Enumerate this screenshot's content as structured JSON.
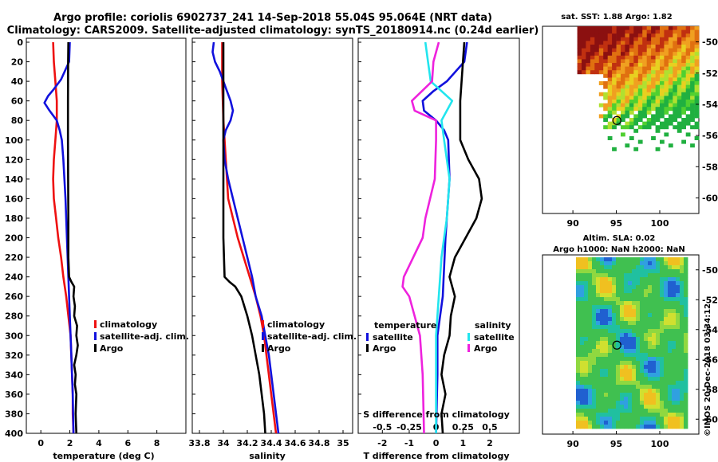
{
  "title": {
    "line1": "Argo profile: coriolis 6902737_241 14-Sep-2018 55.04S 95.064E (NRT data)",
    "line2": "Climatology: CARS2009. Satellite-adjusted climatology: synTS_20180914.nc (0.24d earlier)"
  },
  "colors": {
    "climatology": "#ee1111",
    "satellite": "#1111dd",
    "argo": "#000000",
    "sat_salinity": "#22e5ee",
    "argo_salinity": "#ee22dd"
  },
  "depth_ticks": [
    "0",
    "20",
    "40",
    "60",
    "80",
    "100",
    "120",
    "140",
    "160",
    "180",
    "200",
    "220",
    "240",
    "260",
    "280",
    "300",
    "320",
    "340",
    "360",
    "380",
    "400"
  ],
  "chart_data": [
    {
      "type": "line",
      "id": "temperature",
      "xlabel": "temperature (deg C)",
      "xlim": [
        -1,
        10
      ],
      "ylim": [
        0,
        400
      ],
      "x_ticks": [
        "0",
        "2",
        "4",
        "6",
        "8"
      ],
      "legend": [
        "climatology",
        "satellite-adj. clim.",
        "Argo"
      ],
      "series": [
        {
          "name": "climatology",
          "color": "#ee1111",
          "depth": [
            0,
            20,
            40,
            60,
            80,
            100,
            120,
            140,
            160,
            180,
            200,
            220,
            240,
            260,
            280,
            300,
            320,
            340,
            360,
            380,
            400
          ],
          "values": [
            0.85,
            0.9,
            1.0,
            1.1,
            1.1,
            1.0,
            0.9,
            0.85,
            0.9,
            1.05,
            1.2,
            1.4,
            1.55,
            1.75,
            1.9,
            2.05,
            2.1,
            2.15,
            2.2,
            2.2,
            2.25
          ]
        },
        {
          "name": "satellite-adj. clim.",
          "color": "#1111dd",
          "depth": [
            0,
            20,
            38,
            48,
            55,
            62,
            70,
            80,
            90,
            100,
            120,
            160,
            200,
            240,
            280,
            320,
            360,
            400
          ],
          "values": [
            2.0,
            1.95,
            1.4,
            0.9,
            0.5,
            0.25,
            0.6,
            1.1,
            1.3,
            1.45,
            1.55,
            1.7,
            1.8,
            1.9,
            2.0,
            2.1,
            2.2,
            2.25
          ]
        },
        {
          "name": "Argo",
          "color": "#000000",
          "depth": [
            0,
            20,
            60,
            100,
            140,
            180,
            200,
            220,
            240,
            245,
            250,
            260,
            270,
            280,
            290,
            300,
            310,
            320,
            330,
            340,
            350,
            360,
            380,
            400
          ],
          "values": [
            1.9,
            1.88,
            1.87,
            1.87,
            1.88,
            1.9,
            1.9,
            1.9,
            1.95,
            2.1,
            2.3,
            2.25,
            2.35,
            2.3,
            2.5,
            2.45,
            2.55,
            2.45,
            2.3,
            2.4,
            2.35,
            2.45,
            2.4,
            2.45
          ]
        }
      ]
    },
    {
      "type": "line",
      "id": "salinity",
      "xlabel": "salinity",
      "xlim": [
        33.74,
        35.08
      ],
      "ylim": [
        0,
        400
      ],
      "x_ticks": [
        "33.8",
        "34",
        "34.2",
        "34.4",
        "34.6",
        "34.8",
        "35"
      ],
      "legend": [
        "climatology",
        "satellite-adj. clim.",
        "Argo"
      ],
      "series": [
        {
          "name": "climatology",
          "color": "#ee1111",
          "depth": [
            0,
            40,
            80,
            120,
            160,
            180,
            200,
            220,
            240,
            260,
            280,
            300,
            320,
            340,
            360,
            380,
            400
          ],
          "values": [
            33.99,
            33.99,
            34.0,
            34.02,
            34.04,
            34.08,
            34.12,
            34.17,
            34.22,
            34.27,
            34.31,
            34.34,
            34.36,
            34.38,
            34.4,
            34.42,
            34.44
          ]
        },
        {
          "name": "satellite-adj. clim.",
          "color": "#1111dd",
          "depth": [
            0,
            10,
            20,
            30,
            40,
            50,
            60,
            70,
            80,
            90,
            100,
            120,
            140,
            160,
            180,
            200,
            220,
            240,
            260,
            280,
            300,
            320,
            340,
            360,
            380,
            400
          ],
          "values": [
            33.92,
            33.91,
            33.93,
            33.97,
            34.0,
            34.03,
            34.06,
            34.08,
            34.06,
            34.02,
            34.0,
            34.01,
            34.04,
            34.08,
            34.12,
            34.16,
            34.2,
            34.24,
            34.27,
            34.32,
            34.35,
            34.38,
            34.4,
            34.42,
            34.44,
            34.46
          ]
        },
        {
          "name": "Argo",
          "color": "#000000",
          "depth": [
            0,
            40,
            80,
            120,
            160,
            200,
            240,
            245,
            250,
            260,
            280,
            300,
            320,
            340,
            360,
            380,
            400
          ],
          "values": [
            34.0,
            34.0,
            34.0,
            34.0,
            34.0,
            34.0,
            34.01,
            34.05,
            34.1,
            34.15,
            34.2,
            34.24,
            34.27,
            34.3,
            34.32,
            34.34,
            34.35
          ]
        }
      ]
    },
    {
      "type": "line",
      "id": "difference",
      "xlabel": "T difference from climatology",
      "top_axis_label": "S difference from climatology",
      "xlim": [
        -2.9,
        3.1
      ],
      "ylim": [
        0,
        400
      ],
      "x_ticks": [
        "-2",
        "-1",
        "0",
        "1",
        "2"
      ],
      "top_ticks": [
        "-0.5",
        "-0.25",
        "0",
        "0.25",
        "0.5"
      ],
      "legend_groups": [
        {
          "title": "temperature",
          "items": [
            "satellite",
            "Argo"
          ]
        },
        {
          "title": "salinity",
          "items": [
            "satellite",
            "Argo"
          ]
        }
      ],
      "series": [
        {
          "name": "temperature satellite",
          "color": "#1111dd",
          "depth": [
            0,
            20,
            40,
            50,
            60,
            70,
            80,
            90,
            100,
            140,
            200,
            260,
            300,
            340,
            400
          ],
          "values": [
            1.15,
            1.05,
            0.4,
            -0.1,
            -0.5,
            -0.45,
            0.0,
            0.3,
            0.45,
            0.5,
            0.35,
            0.25,
            0.05,
            0.05,
            0.0
          ]
        },
        {
          "name": "temperature Argo",
          "color": "#000000",
          "depth": [
            0,
            20,
            60,
            100,
            120,
            140,
            160,
            180,
            200,
            220,
            240,
            260,
            280,
            300,
            320,
            340,
            360,
            380,
            400
          ],
          "values": [
            1.05,
            1.0,
            0.9,
            0.9,
            1.2,
            1.6,
            1.7,
            1.5,
            1.1,
            0.7,
            0.5,
            0.7,
            0.55,
            0.5,
            0.3,
            0.2,
            0.35,
            0.2,
            0.25
          ]
        },
        {
          "name": "salinity satellite",
          "color": "#22e5ee",
          "depth": [
            0,
            20,
            40,
            60,
            80,
            100,
            120,
            140,
            160,
            180,
            200,
            220,
            240,
            260,
            280,
            300,
            320,
            340,
            360,
            380,
            400
          ],
          "values": [
            -0.4,
            -0.3,
            -0.2,
            0.6,
            0.2,
            0.3,
            0.4,
            0.5,
            0.45,
            0.4,
            0.3,
            0.2,
            0.15,
            0.1,
            0.05,
            0.0,
            0.0,
            0.0,
            0.0,
            0.0,
            0.0
          ]
        },
        {
          "name": "salinity Argo",
          "color": "#ee22dd",
          "depth": [
            0,
            20,
            40,
            60,
            70,
            80,
            100,
            140,
            180,
            200,
            240,
            250,
            260,
            280,
            300,
            340,
            400
          ],
          "values": [
            0.1,
            -0.1,
            -0.15,
            -0.9,
            -0.8,
            0.0,
            0.0,
            -0.05,
            -0.4,
            -0.5,
            -1.2,
            -1.25,
            -1.0,
            -0.8,
            -0.6,
            -0.5,
            -0.45
          ]
        }
      ]
    },
    {
      "type": "heatmap",
      "id": "sst-map",
      "title": "sat. SST: 1.88 Argo: 1.82",
      "xlim": [
        86.5,
        104.5
      ],
      "ylim": [
        -61,
        -49
      ],
      "x_ticks": [
        "90",
        "95",
        "100"
      ],
      "y_ticks": [
        "-50",
        "-52",
        "-54",
        "-56",
        "-58",
        "-60"
      ],
      "marker": {
        "lon": 95.064,
        "lat": -55.04
      }
    },
    {
      "type": "heatmap",
      "id": "sla-map",
      "title": "Altim. SLA: 0.02",
      "subtitle": "Argo h1000: NaN h2000: NaN",
      "xlim": [
        86.5,
        104.5
      ],
      "ylim": [
        -61,
        -49
      ],
      "x_ticks": [
        "90",
        "95",
        "100"
      ],
      "y_ticks": [
        "-50",
        "-52",
        "-54",
        "-56",
        "-58",
        "-60"
      ],
      "marker": {
        "lon": 95.064,
        "lat": -55.04
      }
    }
  ],
  "watermark": "©IMOS 20-Dec-2018 03:34:12"
}
